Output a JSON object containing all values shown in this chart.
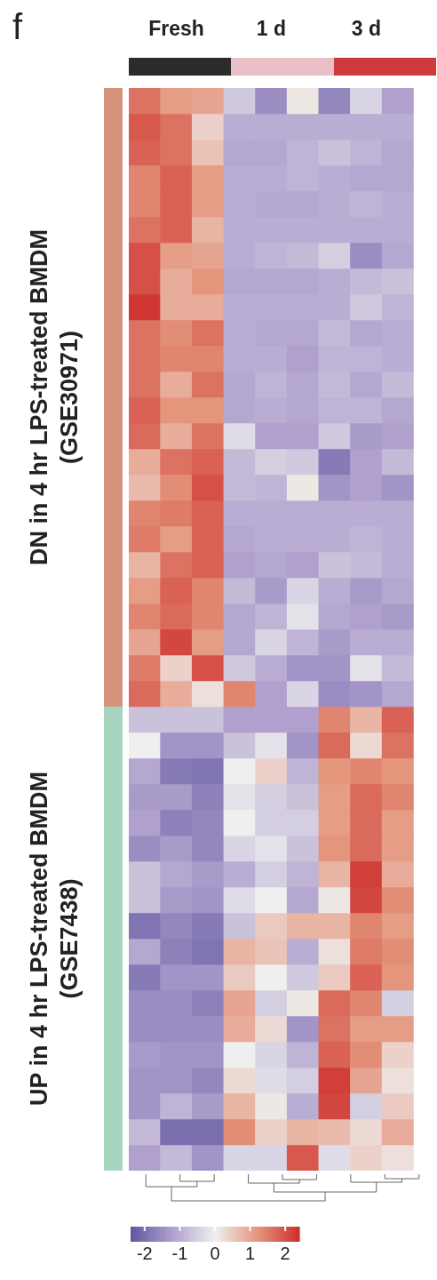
{
  "chart_data": {
    "type": "heatmap",
    "categories": [
      null,
      "Fresh",
      null,
      null,
      "1 d",
      null,
      null,
      "3 d",
      null
    ],
    "y_categories": [
      null,
      null,
      null,
      null,
      null,
      null,
      null,
      null,
      null,
      null,
      null,
      null,
      null,
      null,
      null,
      null,
      null,
      null,
      null,
      null,
      null,
      null,
      null,
      null,
      null,
      null,
      null,
      null,
      null,
      null,
      null,
      null,
      null,
      null,
      null,
      null,
      null,
      null,
      null,
      null,
      null,
      null
    ],
    "cells": [
      [
        1.6,
        1.1,
        1.0,
        -0.6,
        -1.5,
        0.1,
        -1.6,
        -0.4,
        -1.2
      ],
      [
        1.9,
        1.6,
        0.4,
        -1.0,
        -1.0,
        -1.0,
        -1.0,
        -1.0,
        -1.0
      ],
      [
        1.8,
        1.6,
        0.6,
        -1.1,
        -1.1,
        -0.9,
        -0.7,
        -0.9,
        -1.1
      ],
      [
        1.4,
        1.8,
        1.1,
        -1.0,
        -1.0,
        -0.9,
        -1.0,
        -1.1,
        -1.1
      ],
      [
        1.4,
        1.8,
        1.1,
        -1.0,
        -1.1,
        -1.1,
        -1.0,
        -0.9,
        -1.0
      ],
      [
        1.6,
        1.8,
        0.8,
        -1.0,
        -1.0,
        -1.0,
        -1.0,
        -1.0,
        -1.0
      ],
      [
        2.0,
        1.1,
        1.0,
        -1.0,
        -0.9,
        -0.8,
        -0.5,
        -1.5,
        -1.1
      ],
      [
        2.0,
        0.9,
        1.2,
        -1.1,
        -1.1,
        -1.1,
        -1.0,
        -0.8,
        -0.7
      ],
      [
        2.3,
        0.9,
        0.9,
        -1.0,
        -1.0,
        -1.0,
        -1.0,
        -0.6,
        -0.9
      ],
      [
        1.6,
        1.3,
        1.6,
        -1.0,
        -1.1,
        -1.1,
        -0.8,
        -1.1,
        -1.0
      ],
      [
        1.6,
        1.4,
        1.4,
        -1.0,
        -1.0,
        -1.2,
        -0.9,
        -0.9,
        -1.0
      ],
      [
        1.6,
        0.9,
        1.6,
        -1.1,
        -0.9,
        -1.1,
        -0.8,
        -1.1,
        -0.8
      ],
      [
        1.8,
        1.2,
        1.2,
        -1.1,
        -1.0,
        -1.1,
        -0.9,
        -0.9,
        -1.1
      ],
      [
        1.7,
        0.9,
        1.6,
        -0.3,
        -1.2,
        -1.2,
        -0.6,
        -1.3,
        -1.2
      ],
      [
        0.9,
        1.6,
        1.8,
        -0.8,
        -0.5,
        -0.6,
        -1.8,
        -1.2,
        -0.8
      ],
      [
        0.7,
        1.3,
        2.0,
        -0.8,
        -0.9,
        0.1,
        -1.4,
        -1.2,
        -1.4
      ],
      [
        1.4,
        1.5,
        1.8,
        -1.0,
        -1.0,
        -1.0,
        -1.0,
        -1.0,
        -1.0
      ],
      [
        1.5,
        1.1,
        1.8,
        -1.1,
        -1.0,
        -1.0,
        -1.0,
        -0.9,
        -1.0
      ],
      [
        0.8,
        1.6,
        1.8,
        -1.2,
        -1.1,
        -1.2,
        -0.7,
        -0.8,
        -1.0
      ],
      [
        1.1,
        1.8,
        1.4,
        -0.8,
        -1.3,
        -0.4,
        -1.0,
        -1.3,
        -1.1
      ],
      [
        1.4,
        1.7,
        1.4,
        -1.1,
        -0.9,
        -0.2,
        -1.1,
        -1.2,
        -1.3
      ],
      [
        1.0,
        2.1,
        1.1,
        -1.1,
        -0.4,
        -0.9,
        -1.3,
        -1.0,
        -1.0
      ],
      [
        1.5,
        0.4,
        2.0,
        -0.6,
        -1.0,
        -1.4,
        -1.4,
        -0.2,
        -0.8
      ],
      [
        1.7,
        0.9,
        0.2,
        1.4,
        -1.2,
        -0.4,
        -1.5,
        -1.4,
        -1.1
      ],
      [
        -0.7,
        -0.7,
        -0.7,
        -1.2,
        -1.2,
        -1.2,
        1.4,
        0.8,
        1.8
      ],
      [
        0.0,
        -1.4,
        -1.4,
        -0.7,
        -0.2,
        -1.4,
        1.7,
        0.3,
        1.6
      ],
      [
        -1.1,
        -1.8,
        -1.9,
        0.0,
        0.4,
        -0.9,
        1.2,
        1.4,
        1.2
      ],
      [
        -1.3,
        -1.3,
        -1.7,
        -0.2,
        -0.5,
        -0.7,
        1.1,
        1.7,
        1.4
      ],
      [
        -1.2,
        -1.7,
        -1.6,
        0.0,
        -0.5,
        -0.5,
        1.1,
        1.7,
        1.1
      ],
      [
        -1.5,
        -1.3,
        -1.6,
        -0.4,
        -0.2,
        -0.7,
        1.2,
        1.7,
        1.1
      ],
      [
        -0.7,
        -1.1,
        -1.3,
        -1.0,
        -0.5,
        -0.9,
        0.8,
        2.2,
        0.9
      ],
      [
        -0.7,
        -1.3,
        -1.4,
        -0.3,
        0.0,
        -1.1,
        0.1,
        2.1,
        1.3
      ],
      [
        -1.9,
        -1.6,
        -1.8,
        -0.7,
        0.5,
        0.8,
        0.8,
        1.4,
        1.1
      ],
      [
        -1.1,
        -1.7,
        -1.9,
        0.8,
        0.6,
        -1.0,
        0.2,
        1.5,
        1.3
      ],
      [
        -1.8,
        -1.4,
        -1.4,
        0.5,
        0.0,
        -0.6,
        0.5,
        1.8,
        1.2
      ],
      [
        -1.5,
        -1.5,
        -1.7,
        1.0,
        -0.5,
        0.1,
        1.7,
        1.4,
        -0.5
      ],
      [
        -1.5,
        -1.5,
        -1.5,
        0.9,
        0.3,
        -1.4,
        1.6,
        1.1,
        1.1
      ],
      [
        -1.3,
        -1.4,
        -1.4,
        0.0,
        -0.4,
        -0.9,
        1.8,
        1.3,
        0.4
      ],
      [
        -1.4,
        -1.4,
        -1.6,
        0.3,
        -0.3,
        -0.5,
        2.2,
        1.0,
        0.2
      ],
      [
        -1.4,
        -0.9,
        -1.3,
        0.8,
        0.1,
        -1.0,
        2.1,
        -0.5,
        0.5
      ],
      [
        -0.8,
        -2.0,
        -2.0,
        1.3,
        0.4,
        0.8,
        0.7,
        0.3,
        0.9
      ],
      [
        -1.2,
        -0.8,
        -1.4,
        -0.4,
        -0.4,
        1.9,
        -0.3,
        0.4,
        0.2
      ]
    ],
    "clim": [
      -2.4,
      2.4
    ],
    "cticks": [
      -2,
      -1,
      0,
      1,
      2
    ],
    "annotations": [
      "f",
      "DN in 4 hr LPS-treated BMDM (GSE30971)",
      "UP in 4 hr LPS-treated BMDM (GSE7438)"
    ]
  }
}
